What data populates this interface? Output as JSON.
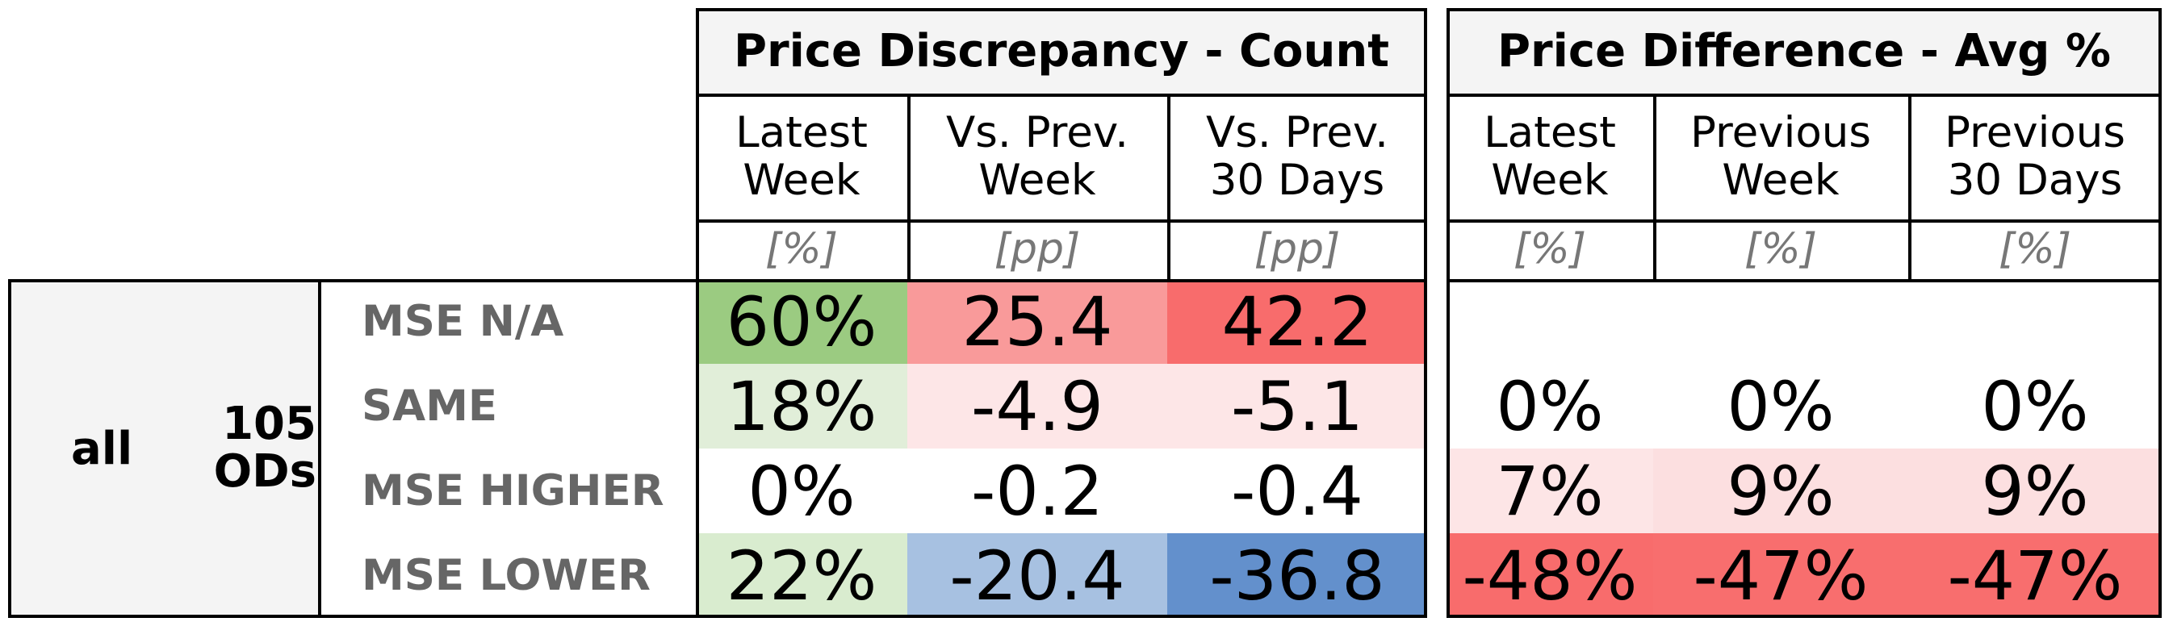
{
  "chart_data": {
    "type": "table",
    "group": {
      "label": "all",
      "count_label": "105\nODs"
    },
    "row_labels": [
      "MSE N/A",
      "SAME",
      "MSE HIGHER",
      "MSE LOWER"
    ],
    "sections": [
      {
        "title": "Price Discrepancy - Count",
        "columns": [
          {
            "header": "Latest\nWeek",
            "unit": "[%]"
          },
          {
            "header": "Vs. Prev.\nWeek",
            "unit": "[pp]"
          },
          {
            "header": "Vs. Prev.\n30 Days",
            "unit": "[pp]"
          }
        ],
        "cells": [
          [
            {
              "text": "60%",
              "color": "#9bcb81"
            },
            {
              "text": "25.4",
              "color": "#f99a9a"
            },
            {
              "text": "42.2",
              "color": "#f86c6c"
            }
          ],
          [
            {
              "text": "18%",
              "color": "#e1eed9"
            },
            {
              "text": "-4.9",
              "color": "#fde6e7"
            },
            {
              "text": "-5.1",
              "color": "#fde6e7"
            }
          ],
          [
            {
              "text": "0%",
              "color": "#ffffff"
            },
            {
              "text": "-0.2",
              "color": "#ffffff"
            },
            {
              "text": "-0.4",
              "color": "#ffffff"
            }
          ],
          [
            {
              "text": "22%",
              "color": "#d9eccf"
            },
            {
              "text": "-20.4",
              "color": "#a7c1e1"
            },
            {
              "text": "-36.8",
              "color": "#6390cc"
            }
          ]
        ]
      },
      {
        "title": "Price Difference - Avg %",
        "columns": [
          {
            "header": "Latest\nWeek",
            "unit": "[%]"
          },
          {
            "header": "Previous\nWeek",
            "unit": "[%]"
          },
          {
            "header": "Previous\n30 Days",
            "unit": "[%]"
          }
        ],
        "cells": [
          [
            {
              "text": "",
              "color": "#ffffff"
            },
            {
              "text": "",
              "color": "#ffffff"
            },
            {
              "text": "",
              "color": "#ffffff"
            }
          ],
          [
            {
              "text": "0%",
              "color": "#ffffff"
            },
            {
              "text": "0%",
              "color": "#ffffff"
            },
            {
              "text": "0%",
              "color": "#ffffff"
            }
          ],
          [
            {
              "text": "7%",
              "color": "#fde5e6"
            },
            {
              "text": "9%",
              "color": "#fcdfe0"
            },
            {
              "text": "9%",
              "color": "#fcdfe0"
            }
          ],
          [
            {
              "text": "-48%",
              "color": "#f86c6c"
            },
            {
              "text": "-47%",
              "color": "#f86e6e"
            },
            {
              "text": "-47%",
              "color": "#f86e6e"
            }
          ]
        ]
      }
    ]
  }
}
